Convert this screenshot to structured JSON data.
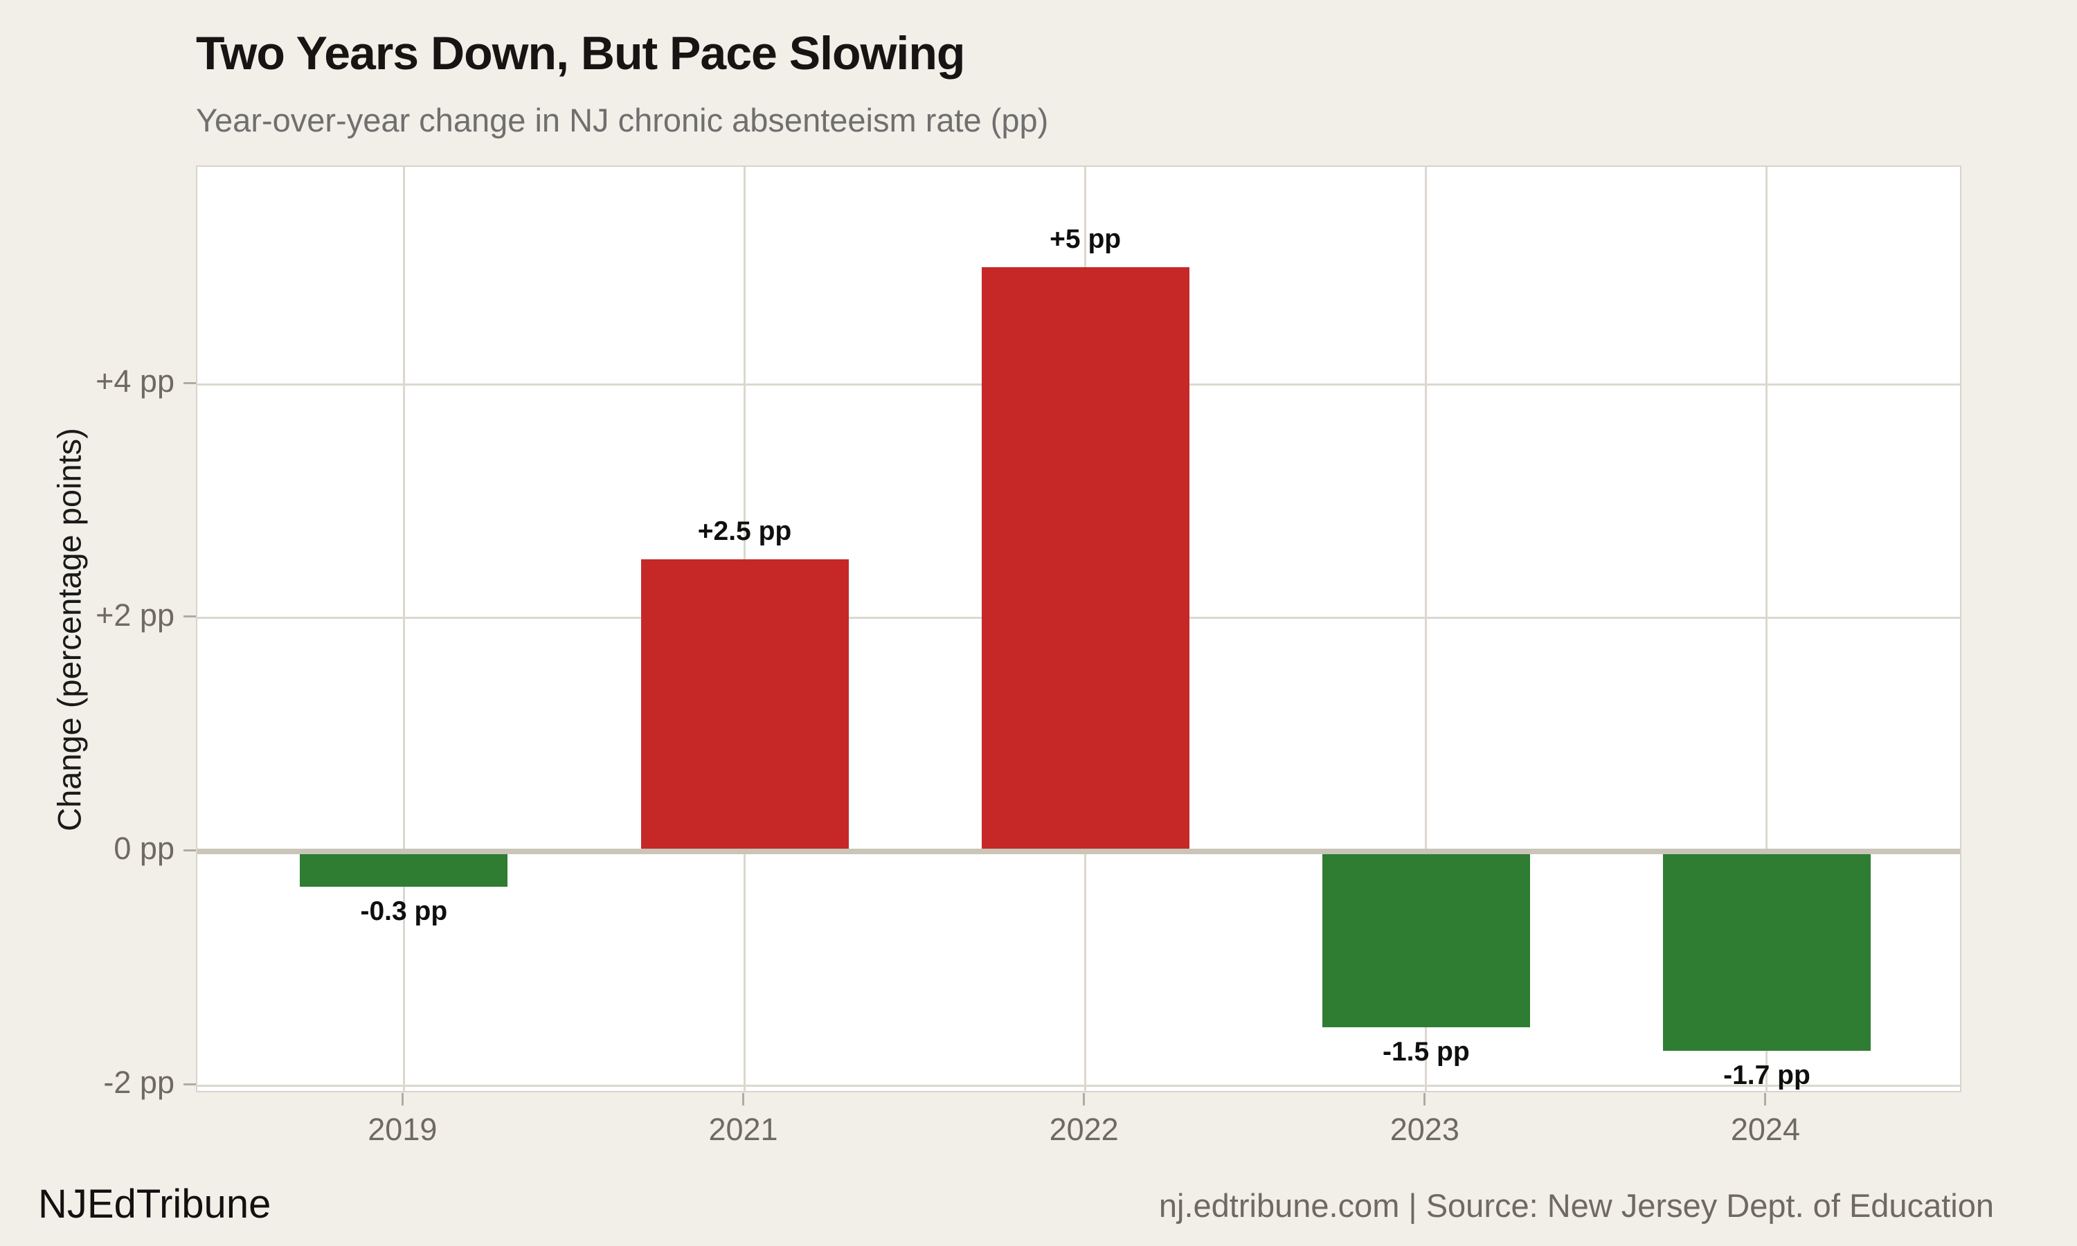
{
  "header": {
    "title": "Two Years Down, But Pace Slowing",
    "subtitle": "Year-over-year change in NJ chronic absenteeism rate (pp)"
  },
  "chart_data": {
    "type": "bar",
    "categories": [
      "2019",
      "2021",
      "2022",
      "2023",
      "2024"
    ],
    "values": [
      -0.3,
      2.5,
      5,
      -1.5,
      -1.7
    ],
    "bar_labels": [
      "-0.3 pp",
      "+2.5 pp",
      "+5 pp",
      "-1.5 pp",
      "-1.7 pp"
    ],
    "title": "Two Years Down, But Pace Slowing",
    "subtitle": "Year-over-year change in NJ chronic absenteeism rate (pp)",
    "xlabel": "",
    "ylabel": "Change (percentage points)",
    "ytick_values": [
      4,
      2,
      0,
      -2
    ],
    "ytick_labels": [
      "+4 pp",
      "+2 pp",
      "0 pp",
      "-2 pp"
    ],
    "ylim": [
      -2.07,
      5.86
    ],
    "grid": true,
    "legend": "none",
    "colors": {
      "positive_bar": "#c52827",
      "negative_bar": "#2e7d32",
      "background": "#f2efe8",
      "plot_background": "#ffffff",
      "gridline": "#dcd8cf",
      "zero_line": "#cac5b9",
      "tick_text": "#6e6a62"
    }
  },
  "footer": {
    "brand": "NJEdTribune",
    "source": "nj.edtribune.com | Source: New Jersey Dept. of Education"
  }
}
